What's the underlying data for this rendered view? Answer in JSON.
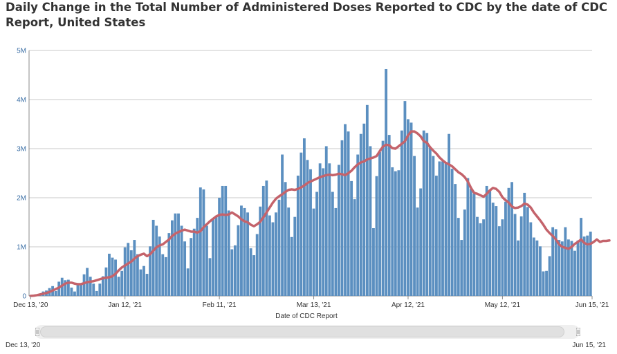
{
  "title": "Daily Change in the Total Number of Administered Doses Reported to CDC by the date of CDC Report, United States",
  "range_selector": {
    "start_label": "Dec 13, '20",
    "end_label": "Jun 15, '21"
  },
  "colors": {
    "bars": "#5b8fc0",
    "bar_stroke": "#4a7cae",
    "average_line": "#c4636b",
    "grid": "#c8c8c8",
    "axis_text": "#3a6ea5"
  },
  "chart_data": {
    "type": "bar",
    "title": "Daily Change in the Total Number of Administered Doses Reported to CDC by the date of CDC Report, United States",
    "xlabel": "Date of CDC Report",
    "ylabel": "",
    "ylim": [
      0,
      5000000
    ],
    "y_ticks": [
      {
        "value": 0,
        "label": "0"
      },
      {
        "value": 1000000,
        "label": "1M"
      },
      {
        "value": 2000000,
        "label": "2M"
      },
      {
        "value": 3000000,
        "label": "3M"
      },
      {
        "value": 4000000,
        "label": "4M"
      },
      {
        "value": 5000000,
        "label": "5M"
      }
    ],
    "x_ticks": [
      {
        "index": 0,
        "label": "Dec 13, '20"
      },
      {
        "index": 30,
        "label": "Jan 12, '21"
      },
      {
        "index": 60,
        "label": "Feb 11, '21"
      },
      {
        "index": 90,
        "label": "Mar 13, '21"
      },
      {
        "index": 120,
        "label": "Apr 12, '21"
      },
      {
        "index": 150,
        "label": "May 12, '21"
      },
      {
        "index": 184,
        "label": "Jun 15, '21"
      }
    ],
    "grid": true,
    "series": [
      {
        "kind": "bar",
        "values": [
          0,
          20000,
          30000,
          40000,
          90000,
          110000,
          160000,
          200000,
          100000,
          290000,
          370000,
          320000,
          330000,
          170000,
          90000,
          250000,
          250000,
          440000,
          570000,
          390000,
          250000,
          100000,
          250000,
          400000,
          580000,
          860000,
          780000,
          740000,
          390000,
          510000,
          990000,
          1080000,
          930000,
          1140000,
          850000,
          540000,
          610000,
          450000,
          1010000,
          1550000,
          1430000,
          1210000,
          850000,
          790000,
          1280000,
          1540000,
          1680000,
          1680000,
          1430000,
          1110000,
          560000,
          1180000,
          1370000,
          1590000,
          2210000,
          2170000,
          1430000,
          770000,
          1580000,
          1620000,
          2000000,
          2240000,
          2240000,
          1740000,
          950000,
          1030000,
          1440000,
          1840000,
          1790000,
          1700000,
          970000,
          830000,
          1260000,
          1820000,
          2240000,
          2350000,
          1640000,
          1500000,
          1700000,
          1960000,
          2880000,
          2320000,
          1800000,
          1200000,
          1610000,
          2450000,
          2920000,
          3210000,
          2770000,
          2580000,
          1780000,
          2120000,
          2700000,
          2600000,
          3050000,
          2700000,
          2120000,
          1790000,
          2670000,
          3170000,
          3500000,
          3350000,
          2340000,
          1970000,
          2880000,
          3300000,
          3510000,
          3890000,
          3050000,
          1380000,
          2440000,
          2930000,
          3160000,
          4620000,
          3280000,
          2620000,
          2540000,
          2560000,
          3370000,
          3970000,
          3600000,
          3530000,
          2850000,
          1800000,
          2190000,
          3370000,
          3320000,
          3030000,
          2850000,
          2450000,
          2740000,
          2740000,
          2700000,
          3300000,
          2590000,
          2280000,
          1590000,
          1140000,
          1760000,
          2400000,
          2180000,
          2080000,
          1610000,
          1480000,
          1560000,
          2240000,
          2140000,
          1900000,
          1830000,
          1420000,
          1560000,
          1920000,
          2200000,
          2320000,
          1670000,
          1130000,
          1620000,
          2100000,
          1810000,
          1500000,
          1190000,
          1130000,
          1010000,
          500000,
          510000,
          810000,
          1400000,
          1360000,
          1140000,
          1110000,
          1400000,
          1150000,
          1120000,
          920000,
          1130000,
          1590000,
          1210000,
          1230000,
          1310000
        ]
      },
      {
        "kind": "line",
        "name": "",
        "values": [
          0,
          5000,
          15000,
          30000,
          45000,
          60000,
          80000,
          110000,
          140000,
          170000,
          210000,
          250000,
          270000,
          270000,
          250000,
          240000,
          240000,
          260000,
          280000,
          290000,
          300000,
          320000,
          340000,
          360000,
          370000,
          380000,
          400000,
          450000,
          520000,
          580000,
          620000,
          660000,
          700000,
          760000,
          810000,
          840000,
          860000,
          810000,
          850000,
          920000,
          990000,
          1030000,
          1050000,
          1100000,
          1150000,
          1220000,
          1270000,
          1300000,
          1330000,
          1350000,
          1330000,
          1310000,
          1310000,
          1290000,
          1320000,
          1400000,
          1460000,
          1520000,
          1570000,
          1620000,
          1650000,
          1660000,
          1650000,
          1660000,
          1700000,
          1660000,
          1620000,
          1560000,
          1520000,
          1500000,
          1450000,
          1420000,
          1460000,
          1510000,
          1600000,
          1700000,
          1800000,
          1900000,
          1980000,
          2030000,
          2070000,
          2120000,
          2160000,
          2170000,
          2160000,
          2180000,
          2210000,
          2250000,
          2300000,
          2330000,
          2360000,
          2390000,
          2420000,
          2440000,
          2460000,
          2470000,
          2460000,
          2470000,
          2490000,
          2480000,
          2460000,
          2500000,
          2550000,
          2620000,
          2680000,
          2720000,
          2740000,
          2780000,
          2800000,
          2820000,
          2850000,
          2950000,
          3040000,
          3080000,
          3070000,
          3010000,
          3000000,
          3050000,
          3100000,
          3150000,
          3270000,
          3350000,
          3350000,
          3310000,
          3250000,
          3150000,
          3120000,
          3030000,
          2960000,
          2900000,
          2820000,
          2760000,
          2710000,
          2680000,
          2640000,
          2580000,
          2520000,
          2480000,
          2420000,
          2330000,
          2200000,
          2100000,
          2080000,
          2050000,
          2020000,
          2080000,
          2150000,
          2200000,
          2180000,
          2120000,
          2010000,
          1950000,
          1900000,
          1820000,
          1790000,
          1800000,
          1830000,
          1880000,
          1860000,
          1800000,
          1700000,
          1620000,
          1540000,
          1450000,
          1350000,
          1280000,
          1220000,
          1150000,
          1050000,
          1000000,
          980000,
          960000,
          1000000,
          1060000,
          1100000,
          1150000,
          1080000,
          1050000,
          1060000,
          1100000,
          1150000,
          1100000,
          1120000,
          1120000,
          1130000
        ]
      }
    ]
  }
}
